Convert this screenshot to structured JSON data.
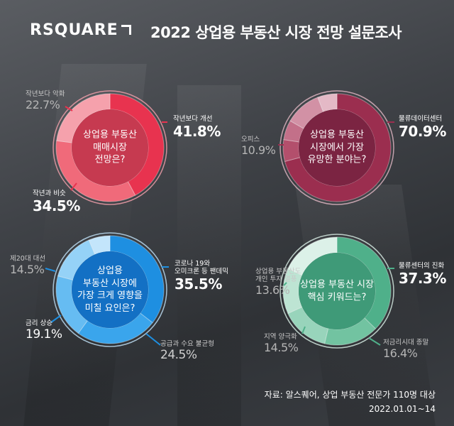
{
  "brand": "RSQUARE",
  "title": "2022 상업용 부동산 시장 전망 설문조사",
  "source": "자료: 알스퀘어, 상업 부동산 전문가 110명 대상",
  "date": "2022.01.01~14",
  "chart_data": [
    {
      "type": "pie",
      "question": [
        "상업용 부동산",
        "매매시장",
        "전망은?"
      ],
      "colors": [
        "#e8334f",
        "#f06a7a",
        "#f5a1ac"
      ],
      "slices": [
        {
          "name": "작년보다 개선",
          "value": 41.8
        },
        {
          "name": "작년과 비슷",
          "value": 34.5
        },
        {
          "name": "작년보다 악화",
          "value": 22.7
        }
      ]
    },
    {
      "type": "pie",
      "question": [
        "상업용 부동산",
        "시장에서 가장",
        "유망한 분야는?"
      ],
      "colors": [
        "#9b2e4f",
        "#b34f6c",
        "#c37089",
        "#d291a5",
        "#e4b9c6"
      ],
      "slices": [
        {
          "name": "물류데이터센터",
          "value": 70.9
        },
        {
          "name": "",
          "value": 6.5
        },
        {
          "name": "",
          "value": 5.9
        },
        {
          "name": "오피스",
          "value": 10.9
        },
        {
          "name": "",
          "value": 5.8
        }
      ]
    },
    {
      "type": "pie",
      "question": [
        "상업용",
        "부동산 시장에",
        "가장 크게 영향을",
        "미칠 요인은?"
      ],
      "colors": [
        "#1e8fe1",
        "#3aa5ec",
        "#66bcf2",
        "#95d2f7",
        "#c3e5fb"
      ],
      "slices": [
        {
          "name": "코로나 19와 오미크론 등 팬데믹",
          "label_lines": [
            "코로나 19와",
            "오미크론 등 팬데믹"
          ],
          "value": 35.5
        },
        {
          "name": "공급과 수요 불균형",
          "value": 24.5
        },
        {
          "name": "금리 상승",
          "value": 19.1
        },
        {
          "name": "제20대 대선",
          "value": 14.5
        },
        {
          "name": "",
          "value": 6.4
        }
      ]
    },
    {
      "type": "pie",
      "question": [
        "상업용 부동산 시장",
        "핵심 키워드는?"
      ],
      "colors": [
        "#4fb08a",
        "#72c3a1",
        "#98d4bb",
        "#bde4d3",
        "#dcf1e8"
      ],
      "slices": [
        {
          "name": "물류센터의 진화",
          "value": 37.3
        },
        {
          "name": "저금리시대 종말",
          "value": 16.4
        },
        {
          "name": "지역 양극화",
          "value": 14.5
        },
        {
          "name": "상업용 부동산도 개인 투자 열풍",
          "label_lines": [
            "상업용 부동산도",
            "개인 투자 열풍"
          ],
          "value": 13.6
        },
        {
          "name": "",
          "value": 18.2
        }
      ]
    }
  ]
}
